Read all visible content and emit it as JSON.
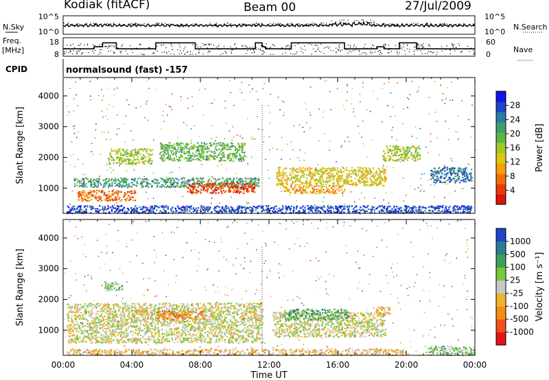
{
  "chart_data": {
    "type": "heatmap",
    "header": {
      "station": "Kodiak (fitACF)",
      "beam": "Beam 00",
      "date": "27/Jul/2009"
    },
    "noise_panel": {
      "left_label": "N.Sky",
      "right_label": "N.Search",
      "left_ticks": [
        "10^5",
        "10^0"
      ],
      "right_ticks": [
        "10^5",
        "10^0"
      ]
    },
    "freq_panel": {
      "left_label_1": "Freq.",
      "left_label_2": "[MHz]",
      "left_ticks": [
        "18",
        "8"
      ],
      "right_label": "Nave",
      "right_ticks": [
        "60",
        "0"
      ],
      "segments": [
        [
          0,
          12.2
        ],
        [
          1.8,
          12.2
        ],
        [
          1.8,
          13.6
        ],
        [
          2.3,
          13.6
        ],
        [
          2.3,
          16.4
        ],
        [
          3.1,
          16.4
        ],
        [
          3.1,
          12.2
        ],
        [
          5.4,
          12.2
        ],
        [
          5.4,
          16.4
        ],
        [
          7.7,
          16.4
        ],
        [
          7.7,
          12.2
        ],
        [
          11.2,
          12.2
        ],
        [
          11.2,
          16.4
        ],
        [
          11.6,
          16.4
        ],
        [
          11.6,
          13.6
        ],
        [
          11.8,
          13.6
        ],
        [
          11.8,
          12.2
        ],
        [
          13.3,
          12.2
        ],
        [
          13.3,
          16.4
        ],
        [
          16.4,
          16.4
        ],
        [
          16.4,
          12.2
        ],
        [
          18.3,
          12.2
        ],
        [
          18.3,
          13.6
        ],
        [
          18.7,
          13.6
        ],
        [
          18.7,
          12.2
        ],
        [
          19.6,
          12.2
        ],
        [
          19.6,
          16.4
        ],
        [
          20.6,
          16.4
        ],
        [
          20.6,
          12.2
        ],
        [
          24,
          12.2
        ]
      ]
    },
    "cpid_label": "CPID",
    "cpid_text": "normalsound (fast) -157",
    "x_axis": {
      "label": "Time UT",
      "range": [
        0,
        24
      ],
      "ticks": [
        "00:00",
        "04:00",
        "08:00",
        "12:00",
        "16:00",
        "20:00",
        "00:00"
      ]
    },
    "y_axis": {
      "label": "Slant Range [km]",
      "range": [
        180,
        4600
      ],
      "ticks": [
        "1000",
        "2000",
        "3000",
        "4000"
      ]
    },
    "power_scale": {
      "label": "Power [dB]",
      "ticks": [
        "4",
        "8",
        "12",
        "16",
        "20",
        "24",
        "28"
      ],
      "colors": [
        "#1414e6",
        "#1e46c8",
        "#2d7aa5",
        "#3c9f6e",
        "#5fb446",
        "#a0c828",
        "#dcc814",
        "#f5a00a",
        "#f06e0a",
        "#e63c0a",
        "#dc140a"
      ]
    },
    "velocity_scale": {
      "label": "Velocity [m s⁻¹]",
      "ticks": [
        "1000",
        "500",
        "100",
        "25",
        "-25",
        "-100",
        "-500",
        "-1000"
      ],
      "colors": [
        "#1e46c8",
        "#2d7d91",
        "#3ca05a",
        "#78c83c",
        "#c8c8c8",
        "#f0b428",
        "#f58c14",
        "#f0501e",
        "#e61414"
      ]
    },
    "power_echo_regions": [
      {
        "t": [
          0.6,
          11.4
        ],
        "r": [
          1050,
          1350
        ],
        "level": 3
      },
      {
        "t": [
          0.8,
          4.2
        ],
        "r": [
          600,
          950
        ],
        "level": 8
      },
      {
        "t": [
          7.2,
          11.2
        ],
        "r": [
          850,
          1200
        ],
        "level": 9
      },
      {
        "t": [
          2.6,
          5.2
        ],
        "r": [
          1800,
          2300
        ],
        "level": 5
      },
      {
        "t": [
          5.6,
          10.6
        ],
        "r": [
          1900,
          2500
        ],
        "level": 4
      },
      {
        "t": [
          12.4,
          18.8
        ],
        "r": [
          1100,
          1700
        ],
        "level": 6
      },
      {
        "t": [
          12.8,
          16.4
        ],
        "r": [
          850,
          1100
        ],
        "level": 7
      },
      {
        "t": [
          18.6,
          20.8
        ],
        "r": [
          1900,
          2400
        ],
        "level": 5
      },
      {
        "t": [
          21.4,
          23.8
        ],
        "r": [
          1200,
          1700
        ],
        "level": 2
      },
      {
        "t": [
          0.2,
          23.8
        ],
        "r": [
          200,
          450
        ],
        "level": 1
      }
    ],
    "velocity_echo_regions": [
      {
        "t": [
          0.2,
          11.6
        ],
        "r": [
          600,
          1900
        ],
        "level": 4
      },
      {
        "t": [
          12.2,
          18.8
        ],
        "r": [
          800,
          1600
        ],
        "level": 4
      },
      {
        "t": [
          12.8,
          16.6
        ],
        "r": [
          1350,
          1700
        ],
        "level": 2
      },
      {
        "t": [
          4.2,
          5.2
        ],
        "r": [
          1500,
          1700
        ],
        "level": 5
      },
      {
        "t": [
          5.4,
          8.2
        ],
        "r": [
          1350,
          1650
        ],
        "level": 6
      },
      {
        "t": [
          18.2,
          19.0
        ],
        "r": [
          1500,
          1800
        ],
        "level": 5
      },
      {
        "t": [
          2.4,
          3.4
        ],
        "r": [
          2300,
          2600
        ],
        "level": 3
      },
      {
        "t": [
          21.0,
          24.0
        ],
        "r": [
          200,
          500
        ],
        "level": 3
      },
      {
        "t": [
          0.2,
          20.0
        ],
        "r": [
          200,
          400
        ],
        "level": 5
      }
    ]
  }
}
